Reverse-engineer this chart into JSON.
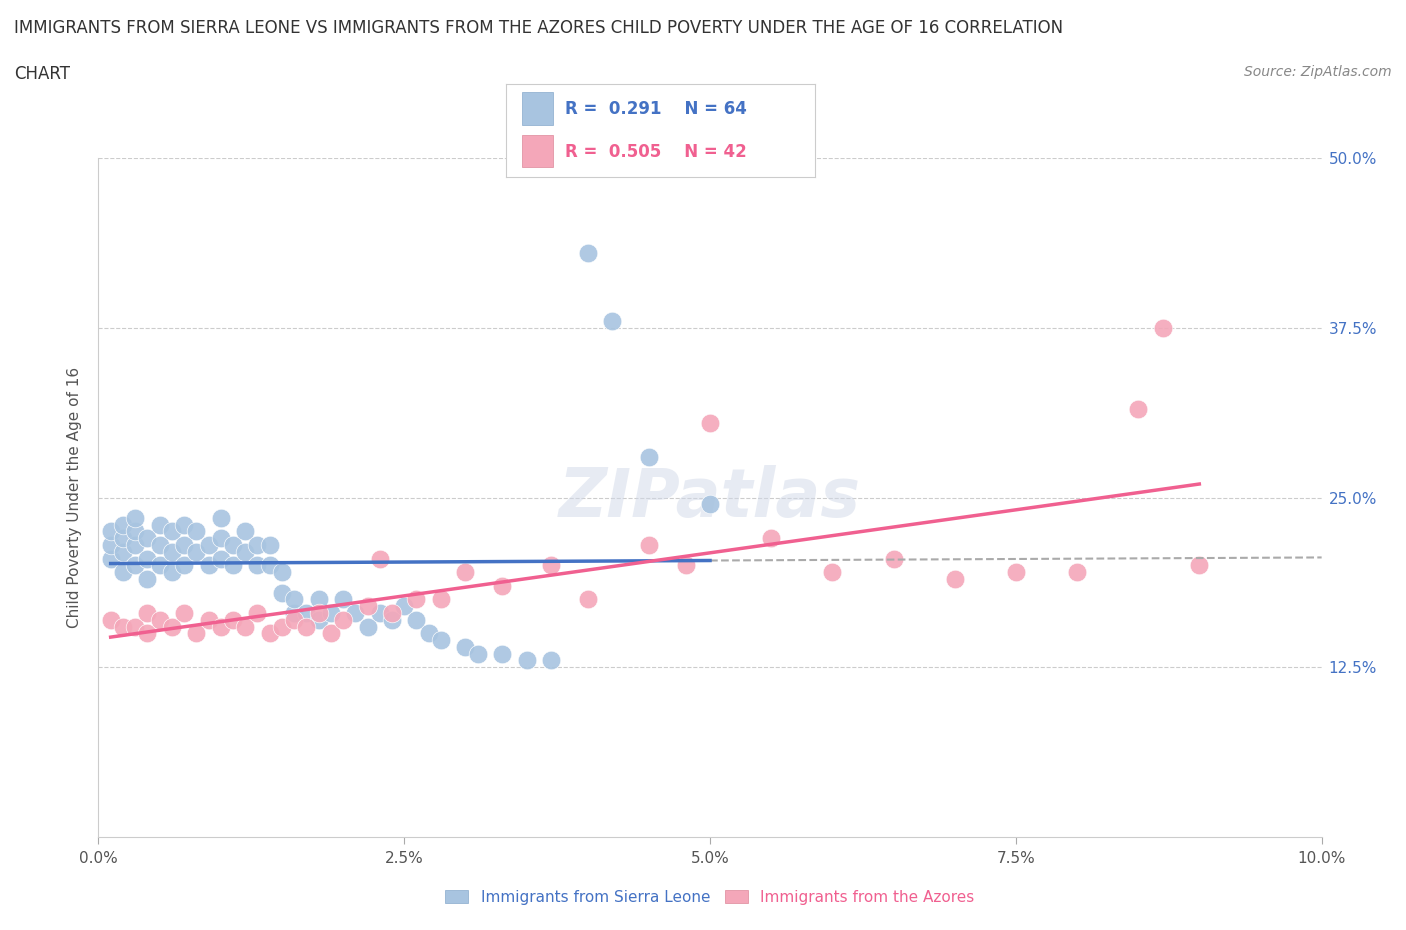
{
  "title_line1": "IMMIGRANTS FROM SIERRA LEONE VS IMMIGRANTS FROM THE AZORES CHILD POVERTY UNDER THE AGE OF 16 CORRELATION",
  "title_line2": "CHART",
  "source_text": "Source: ZipAtlas.com",
  "ylabel": "Child Poverty Under the Age of 16",
  "xlim": [
    0.0,
    0.1
  ],
  "ylim": [
    0.0,
    0.5
  ],
  "xtick_labels": [
    "0.0%",
    "2.5%",
    "5.0%",
    "7.5%",
    "10.0%"
  ],
  "xtick_vals": [
    0.0,
    0.025,
    0.05,
    0.075,
    0.1
  ],
  "ytick_labels": [
    "12.5%",
    "25.0%",
    "37.5%",
    "50.0%"
  ],
  "ytick_vals": [
    0.125,
    0.25,
    0.375,
    0.5
  ],
  "color_sierra": "#a8c4e0",
  "color_azores": "#f4a7b9",
  "line_color_sierra": "#4472c4",
  "line_color_azores": "#f06090",
  "R_sierra": 0.291,
  "N_sierra": 64,
  "R_azores": 0.505,
  "N_azores": 42,
  "watermark": "ZIPatlas",
  "legend_label_sierra": "Immigrants from Sierra Leone",
  "legend_label_azores": "Immigrants from the Azores",
  "sierra_x": [
    0.001,
    0.001,
    0.001,
    0.002,
    0.002,
    0.002,
    0.002,
    0.003,
    0.003,
    0.003,
    0.003,
    0.004,
    0.004,
    0.004,
    0.005,
    0.005,
    0.005,
    0.006,
    0.006,
    0.006,
    0.007,
    0.007,
    0.007,
    0.008,
    0.008,
    0.009,
    0.009,
    0.01,
    0.01,
    0.01,
    0.011,
    0.011,
    0.012,
    0.012,
    0.013,
    0.013,
    0.014,
    0.014,
    0.015,
    0.015,
    0.016,
    0.016,
    0.017,
    0.018,
    0.018,
    0.019,
    0.02,
    0.021,
    0.022,
    0.023,
    0.024,
    0.025,
    0.026,
    0.027,
    0.028,
    0.03,
    0.031,
    0.033,
    0.035,
    0.037,
    0.04,
    0.042,
    0.045,
    0.05
  ],
  "sierra_y": [
    0.205,
    0.215,
    0.225,
    0.195,
    0.21,
    0.22,
    0.23,
    0.2,
    0.215,
    0.225,
    0.235,
    0.19,
    0.205,
    0.22,
    0.2,
    0.215,
    0.23,
    0.195,
    0.21,
    0.225,
    0.2,
    0.215,
    0.23,
    0.21,
    0.225,
    0.2,
    0.215,
    0.205,
    0.22,
    0.235,
    0.2,
    0.215,
    0.21,
    0.225,
    0.2,
    0.215,
    0.2,
    0.215,
    0.18,
    0.195,
    0.165,
    0.175,
    0.165,
    0.16,
    0.175,
    0.165,
    0.175,
    0.165,
    0.155,
    0.165,
    0.16,
    0.17,
    0.16,
    0.15,
    0.145,
    0.14,
    0.135,
    0.135,
    0.13,
    0.13,
    0.43,
    0.38,
    0.28,
    0.245
  ],
  "azores_x": [
    0.001,
    0.002,
    0.003,
    0.004,
    0.004,
    0.005,
    0.006,
    0.007,
    0.008,
    0.009,
    0.01,
    0.011,
    0.012,
    0.013,
    0.014,
    0.015,
    0.016,
    0.017,
    0.018,
    0.019,
    0.02,
    0.022,
    0.023,
    0.024,
    0.026,
    0.028,
    0.03,
    0.033,
    0.037,
    0.04,
    0.045,
    0.048,
    0.05,
    0.055,
    0.06,
    0.065,
    0.07,
    0.075,
    0.08,
    0.085,
    0.087,
    0.09
  ],
  "azores_y": [
    0.16,
    0.155,
    0.155,
    0.15,
    0.165,
    0.16,
    0.155,
    0.165,
    0.15,
    0.16,
    0.155,
    0.16,
    0.155,
    0.165,
    0.15,
    0.155,
    0.16,
    0.155,
    0.165,
    0.15,
    0.16,
    0.17,
    0.205,
    0.165,
    0.175,
    0.175,
    0.195,
    0.185,
    0.2,
    0.175,
    0.215,
    0.2,
    0.305,
    0.22,
    0.195,
    0.205,
    0.19,
    0.195,
    0.195,
    0.315,
    0.375,
    0.2
  ]
}
